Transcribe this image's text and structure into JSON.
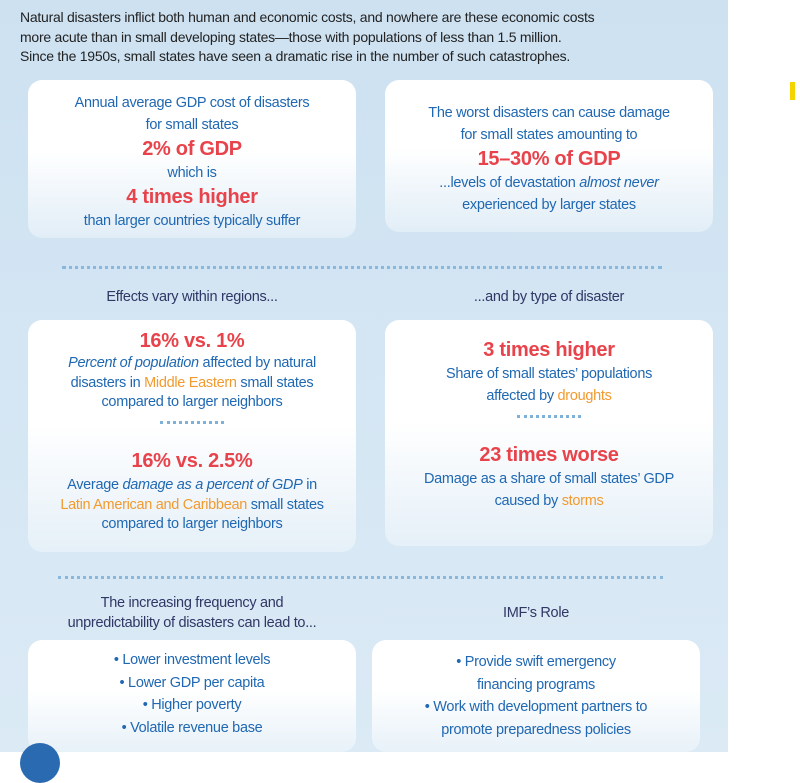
{
  "intro": [
    "Natural disasters inflict both human and economic costs, and nowhere are these economic costs",
    "more acute than in small developing states—those with populations of less than 1.5 million.",
    "Since the 1950s, small states have seen a dramatic rise in the number of such catastrophes."
  ],
  "colors": {
    "accent_red": "#e8434b",
    "text_blue": "#2068b2",
    "highlight_orange": "#f29a2e",
    "heading_navy": "#2f3765",
    "panel_blue": "#cde1f1"
  },
  "cards": [
    {
      "lines": [
        {
          "c": "s",
          "segs": [
            {
              "t": "Annual average GDP cost of disasters"
            }
          ]
        },
        {
          "c": "s",
          "segs": [
            {
              "t": "for small states"
            }
          ]
        },
        {
          "c": "b",
          "segs": [
            {
              "t": "2% of GDP"
            }
          ]
        },
        {
          "c": "s",
          "segs": [
            {
              "t": "which is"
            }
          ]
        },
        {
          "c": "b",
          "segs": [
            {
              "t": "4 times higher"
            }
          ]
        },
        {
          "c": "s",
          "segs": [
            {
              "t": "than larger countries typically suffer"
            }
          ]
        }
      ]
    },
    {
      "lines": [
        {
          "c": "s",
          "segs": [
            {
              "t": "The worst disasters can cause damage"
            }
          ]
        },
        {
          "c": "s",
          "segs": [
            {
              "t": "for small states amounting to"
            }
          ]
        },
        {
          "c": "b",
          "segs": [
            {
              "t": "15–30% of GDP"
            }
          ]
        },
        {
          "c": "s",
          "segs": [
            {
              "t": "...levels of devastation "
            },
            {
              "t": "almost never",
              "st": "i"
            }
          ]
        },
        {
          "c": "s",
          "segs": [
            {
              "t": "experienced by larger states"
            }
          ]
        }
      ]
    },
    {
      "lines": [
        {
          "c": "b",
          "segs": [
            {
              "t": "16% vs. 1%"
            }
          ]
        },
        {
          "c": "s tight",
          "segs": [
            {
              "t": "Percent of population",
              "st": "i"
            },
            {
              "t": " affected by natural"
            }
          ]
        },
        {
          "c": "s tight",
          "segs": [
            {
              "t": "disasters in "
            },
            {
              "t": "Middle Eastern",
              "st": "o"
            },
            {
              "t": " small states"
            }
          ]
        },
        {
          "c": "s tight",
          "segs": [
            {
              "t": "compared to larger neighbors"
            }
          ]
        },
        {
          "c": "dots",
          "segs": []
        },
        {
          "c": "b",
          "segs": [
            {
              "t": "16% vs. 2.5%"
            }
          ]
        },
        {
          "c": "s",
          "segs": [
            {
              "t": "Average "
            },
            {
              "t": "damage as a percent of GDP",
              "st": "i"
            },
            {
              "t": " in"
            }
          ]
        },
        {
          "c": "s tight",
          "segs": [
            {
              "t": "Latin American and Caribbean",
              "st": "o"
            },
            {
              "t": " small states"
            }
          ]
        },
        {
          "c": "s tight",
          "segs": [
            {
              "t": "compared to larger neighbors"
            }
          ]
        }
      ]
    },
    {
      "lines": [
        {
          "c": "b",
          "segs": [
            {
              "t": "3 times higher"
            }
          ]
        },
        {
          "c": "s",
          "segs": [
            {
              "t": "Share of small states’ populations"
            }
          ]
        },
        {
          "c": "s",
          "segs": [
            {
              "t": "affected by "
            },
            {
              "t": "droughts",
              "st": "o"
            }
          ]
        },
        {
          "c": "dots",
          "segs": []
        },
        {
          "c": "b",
          "segs": [
            {
              "t": "23 times worse"
            }
          ]
        },
        {
          "c": "s",
          "segs": [
            {
              "t": "Damage as a share of small states’ GDP"
            }
          ]
        },
        {
          "c": "s",
          "segs": [
            {
              "t": "caused by "
            },
            {
              "t": "storms",
              "st": "o"
            }
          ]
        }
      ]
    },
    {
      "lines": [
        {
          "c": "bul",
          "segs": [
            {
              "t": "• Lower investment levels"
            }
          ]
        },
        {
          "c": "bul",
          "segs": [
            {
              "t": "• Lower GDP per capita"
            }
          ]
        },
        {
          "c": "bul",
          "segs": [
            {
              "t": "• Higher poverty"
            }
          ]
        },
        {
          "c": "bul",
          "segs": [
            {
              "t": "• Volatile revenue base"
            }
          ]
        }
      ]
    },
    {
      "lines": [
        {
          "c": "bul",
          "segs": [
            {
              "t": "• Provide swift emergency"
            }
          ]
        },
        {
          "c": "bul",
          "segs": [
            {
              "t": "financing programs"
            }
          ]
        },
        {
          "c": "bul",
          "segs": [
            {
              "t": "• Work with development partners to"
            }
          ]
        },
        {
          "c": "bul",
          "segs": [
            {
              "t": "promote preparedness policies"
            }
          ]
        }
      ]
    }
  ],
  "headings": {
    "regions": "Effects vary within regions...",
    "type": "...and by type of disaster",
    "consequences": [
      "The increasing frequency and",
      "unpredictability of disasters can lead to..."
    ],
    "imf_role": "IMF’s Role"
  }
}
